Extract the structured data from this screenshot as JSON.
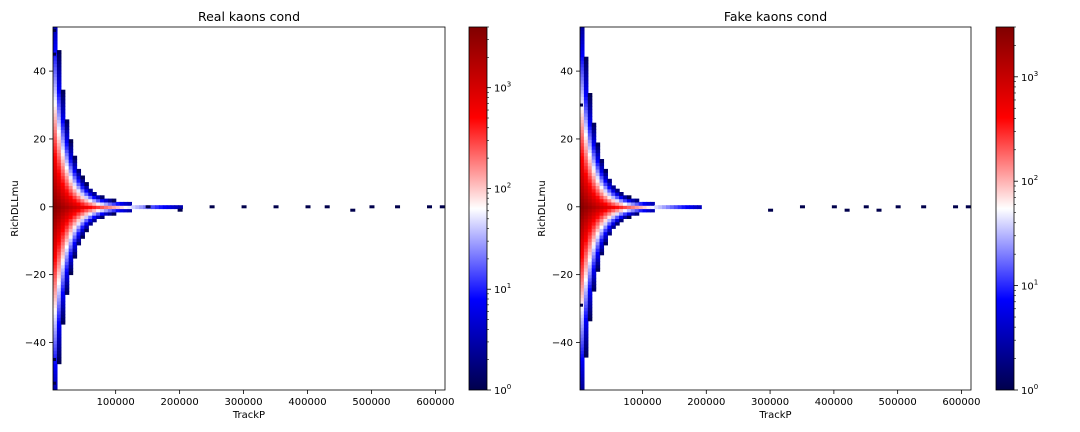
{
  "chart_data": [
    {
      "type": "heatmap",
      "title": "Real kaons cond",
      "xlabel": "TrackP",
      "ylabel": "RichDLLmu",
      "xlim": [
        2000,
        615000
      ],
      "ylim": [
        -54,
        53
      ],
      "xticks": [
        100000,
        200000,
        300000,
        400000,
        500000,
        600000
      ],
      "xtick_labels": [
        "100000",
        "200000",
        "300000",
        "400000",
        "500000",
        "600000"
      ],
      "yticks": [
        40,
        20,
        0,
        -20,
        -40
      ],
      "ytick_labels": [
        "40",
        "20",
        "0",
        "−20",
        "−40"
      ],
      "colorbar": {
        "scale": "log",
        "range": [
          1,
          4000
        ],
        "ticks": [
          1,
          10,
          100,
          1000
        ],
        "tick_labels": [
          "10",
          "10",
          "10",
          "10"
        ],
        "tick_exponents": [
          "0",
          "1",
          "2",
          "3"
        ],
        "colormap": [
          "#00004c",
          "#0000ff",
          "#ffffff",
          "#ff0000",
          "#800000"
        ]
      },
      "distribution": {
        "x_center_of_mass": 10000,
        "y_center": 0,
        "peak_count": 4000,
        "isolated_bins": [
          [
            2000,
            52
          ],
          [
            2000,
            -52
          ],
          [
            2000,
            45
          ],
          [
            2000,
            -45
          ],
          [
            150000,
            0
          ],
          [
            200000,
            -1
          ],
          [
            250000,
            0
          ],
          [
            300000,
            0
          ],
          [
            350000,
            0
          ],
          [
            400000,
            0
          ],
          [
            430000,
            0
          ],
          [
            470000,
            -1
          ],
          [
            500000,
            0
          ],
          [
            540000,
            0
          ],
          [
            590000,
            0
          ],
          [
            610000,
            0
          ]
        ]
      }
    },
    {
      "type": "heatmap",
      "title": "Fake kaons cond",
      "xlabel": "TrackP",
      "ylabel": "RichDLLmu",
      "xlim": [
        2000,
        615000
      ],
      "ylim": [
        -54,
        53
      ],
      "xticks": [
        100000,
        200000,
        300000,
        400000,
        500000,
        600000
      ],
      "xtick_labels": [
        "100000",
        "200000",
        "300000",
        "400000",
        "500000",
        "600000"
      ],
      "yticks": [
        40,
        20,
        0,
        -20,
        -40
      ],
      "ytick_labels": [
        "40",
        "20",
        "0",
        "−20",
        "−40"
      ],
      "colorbar": {
        "scale": "log",
        "range": [
          1,
          3000
        ],
        "ticks": [
          1,
          10,
          100,
          1000
        ],
        "tick_labels": [
          "10",
          "10",
          "10",
          "10"
        ],
        "tick_exponents": [
          "0",
          "1",
          "2",
          "3"
        ],
        "colormap": [
          "#00004c",
          "#0000ff",
          "#ffffff",
          "#ff0000",
          "#800000"
        ]
      },
      "distribution": {
        "x_center_of_mass": 10000,
        "y_center": 0,
        "peak_count": 3000,
        "isolated_bins": [
          [
            2000,
            30
          ],
          [
            2000,
            -29
          ],
          [
            300000,
            -1
          ],
          [
            350000,
            0
          ],
          [
            400000,
            0
          ],
          [
            420000,
            -1
          ],
          [
            450000,
            0
          ],
          [
            470000,
            -1
          ],
          [
            500000,
            0
          ],
          [
            540000,
            0
          ],
          [
            590000,
            0
          ],
          [
            610000,
            0
          ]
        ]
      }
    }
  ]
}
